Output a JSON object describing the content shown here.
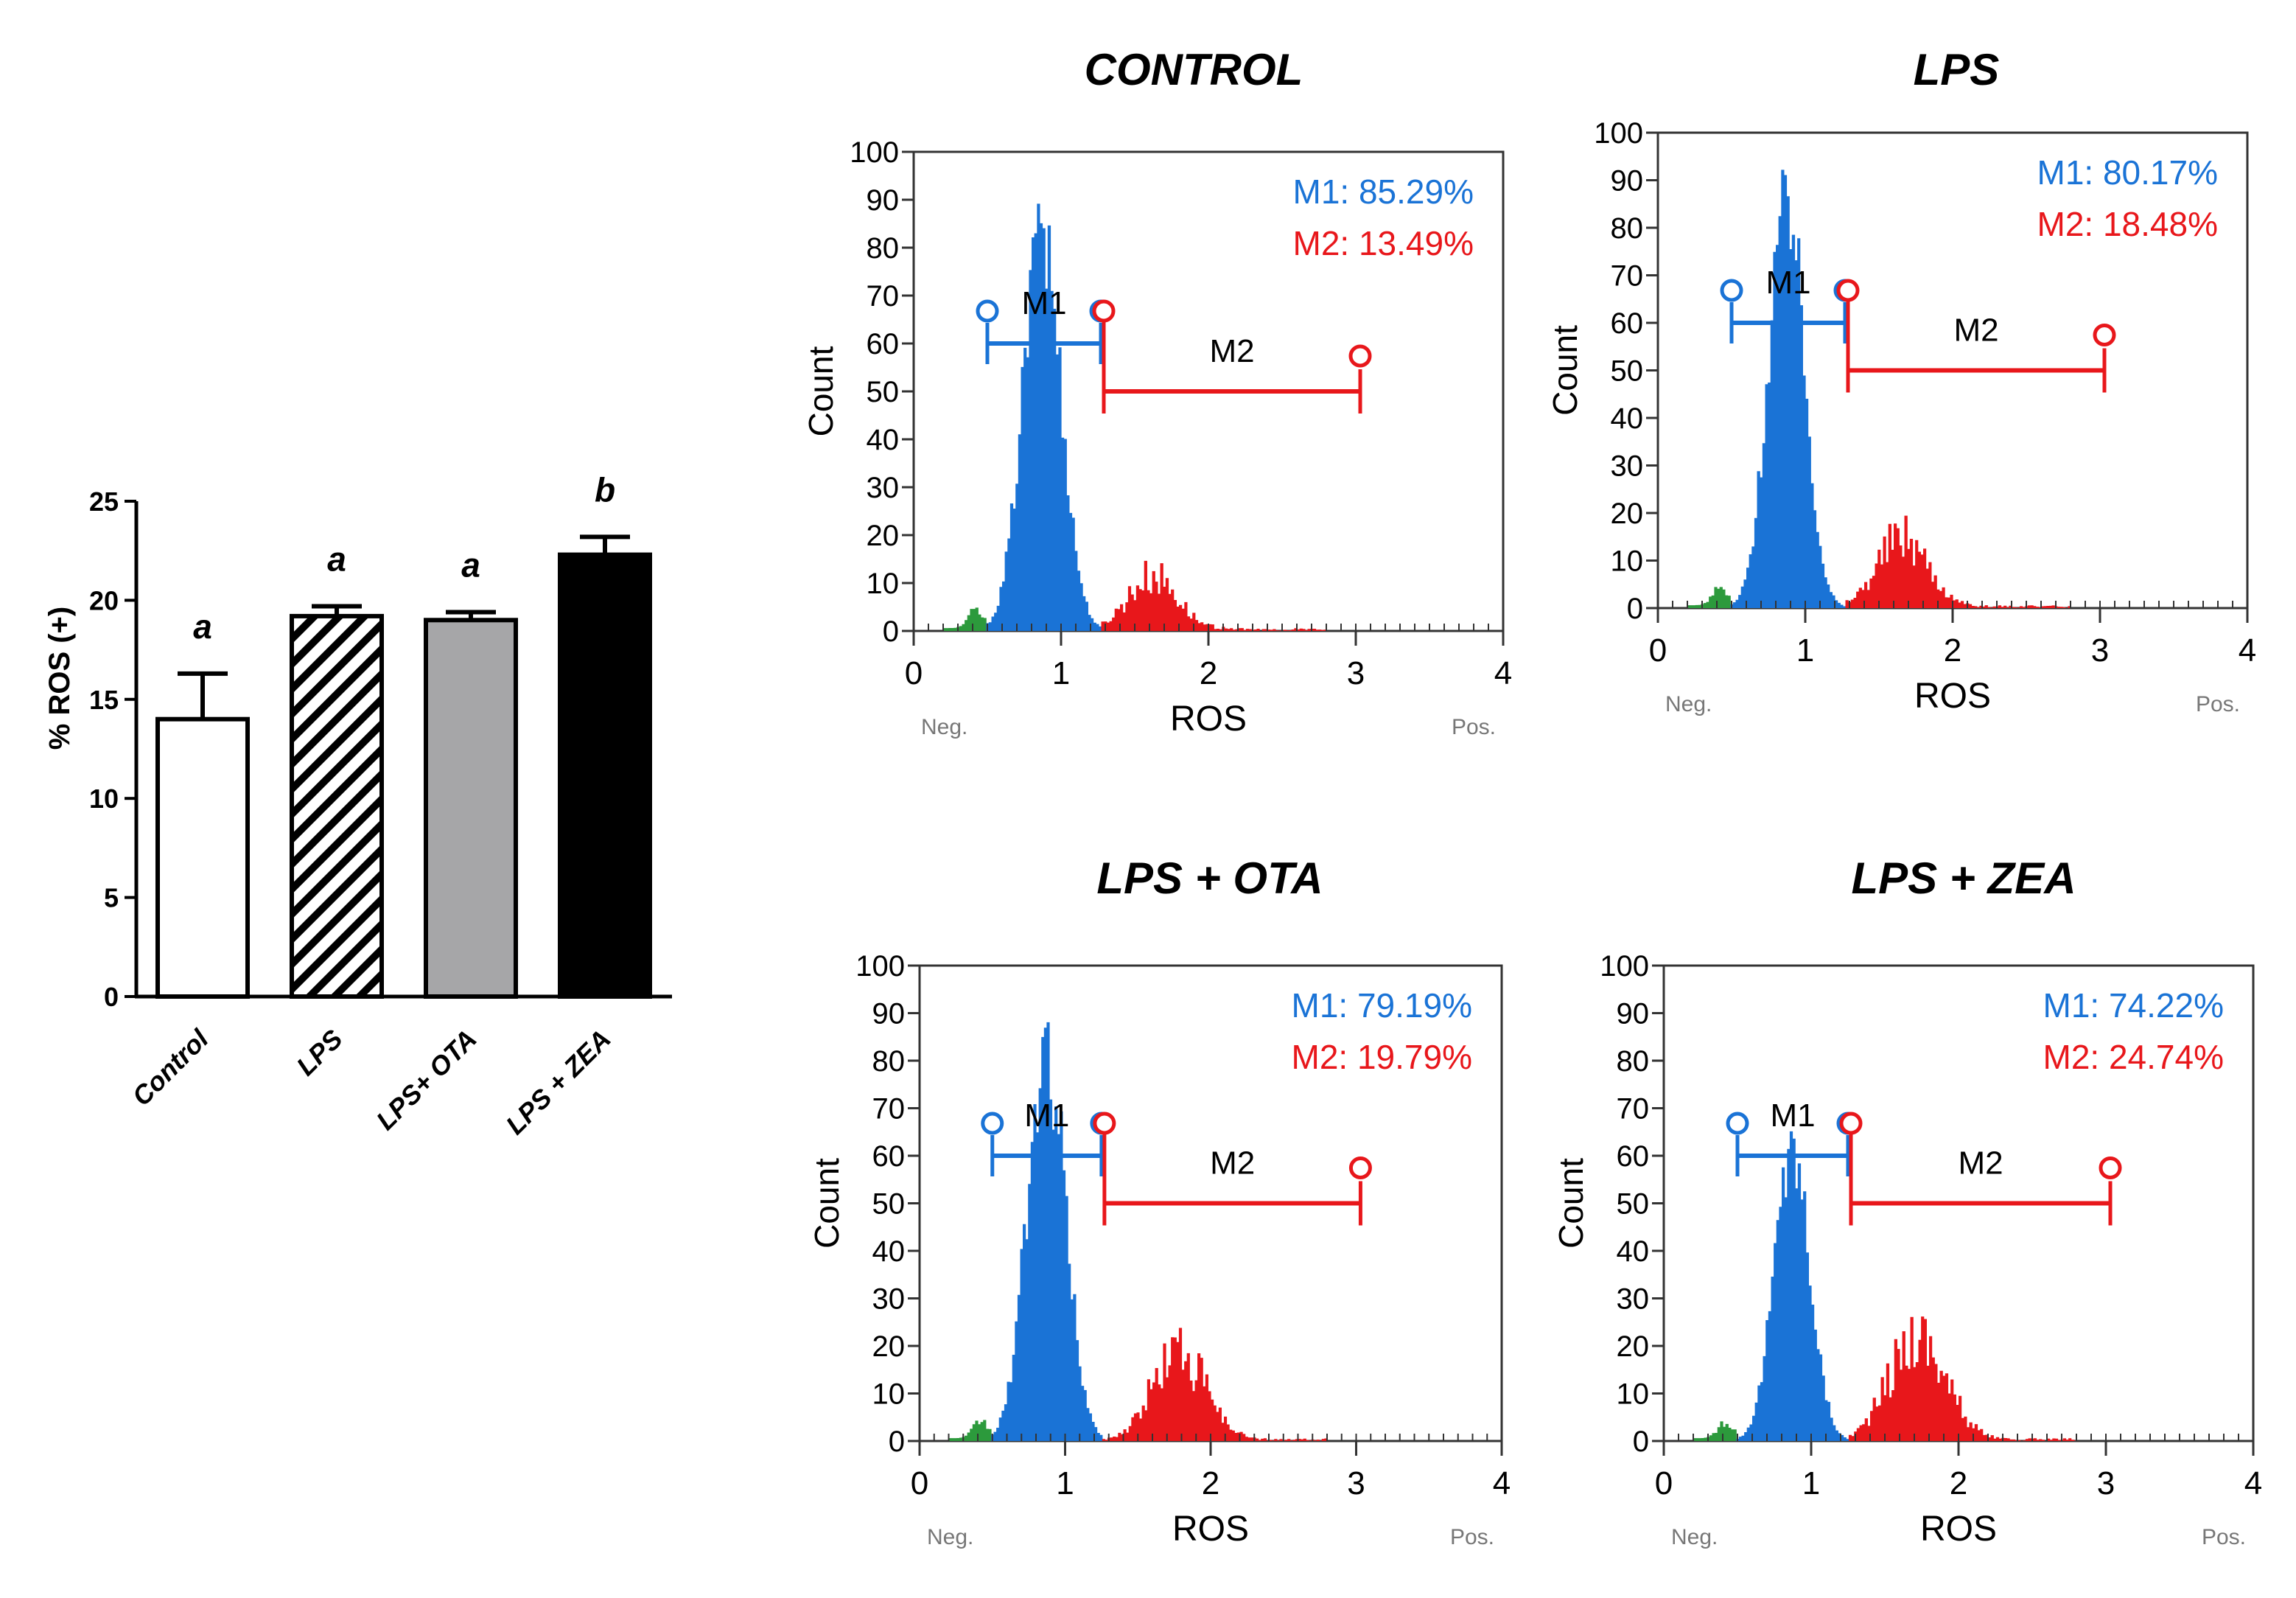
{
  "bar_chart": {
    "ylabel": "% ROS (+)",
    "yticks": [
      "0",
      "5",
      "10",
      "15",
      "20",
      "25"
    ]
  },
  "histograms": {
    "xticks": [
      "0",
      "1",
      "2",
      "3",
      "4"
    ],
    "yticks": [
      "0",
      "10",
      "20",
      "30",
      "40",
      "50",
      "60",
      "70",
      "80",
      "90",
      "100"
    ],
    "ylabel": "Count",
    "xlabel": "ROS",
    "neg_label": "Neg.",
    "pos_label": "Pos.",
    "gate1_label": "M1",
    "gate2_label": "M2"
  },
  "colors": {
    "m1": "#1a73d6",
    "m2": "#e8171b",
    "green": "#2c9a3c",
    "ota_bar": "#a6a6a8",
    "zea_bar": "#000000"
  },
  "chart_data": [
    {
      "type": "bar",
      "title": "",
      "xlabel": "",
      "ylabel": "% ROS (+)",
      "ylim": [
        0,
        25
      ],
      "categories": [
        "Control",
        "LPS",
        "LPS+ OTA",
        "LPS + ZEA"
      ],
      "values": [
        14.0,
        19.2,
        19.0,
        22.3
      ],
      "errors": [
        2.3,
        0.5,
        0.4,
        0.9
      ],
      "significance": [
        "a",
        "a",
        "a",
        "b"
      ],
      "fills": [
        "white",
        "hatched",
        "gray",
        "black"
      ]
    },
    {
      "type": "area",
      "title": "CONTROL",
      "xlabel": "ROS",
      "ylabel": "Count",
      "xlim": [
        0,
        4
      ],
      "ylim": [
        0,
        100
      ],
      "m1": "M1: 85.29%",
      "m2": "M2: 13.49%",
      "m1_range": [
        0.5,
        1.27
      ],
      "m2_range": [
        1.27,
        3.03
      ],
      "m1_bar_y": 60,
      "m2_bar_y": 50,
      "m1_peak": 85,
      "m1_mu": 0.87,
      "m1_sigma": 0.13,
      "m2_peak": 12,
      "m2_mu": 1.62,
      "m2_sigma": 0.17
    },
    {
      "type": "area",
      "title": "LPS",
      "xlabel": "ROS",
      "ylabel": "Count",
      "xlim": [
        0,
        4
      ],
      "ylim": [
        0,
        100
      ],
      "m1": "M1: 80.17%",
      "m2": "M2: 18.48%",
      "m1_range": [
        0.5,
        1.27
      ],
      "m2_range": [
        1.27,
        3.03
      ],
      "m1_bar_y": 60,
      "m2_bar_y": 50,
      "m1_peak": 90,
      "m1_mu": 0.87,
      "m1_sigma": 0.12,
      "m2_peak": 16,
      "m2_mu": 1.66,
      "m2_sigma": 0.17
    },
    {
      "type": "area",
      "title": "LPS + OTA",
      "xlabel": "ROS",
      "ylabel": "Count",
      "xlim": [
        0,
        4
      ],
      "ylim": [
        0,
        100
      ],
      "m1": "M1: 79.19%",
      "m2": "M2: 19.79%",
      "m1_range": [
        0.5,
        1.25
      ],
      "m2_range": [
        1.25,
        3.03
      ],
      "m1_bar_y": 60,
      "m2_bar_y": 50,
      "m1_peak": 85,
      "m1_mu": 0.87,
      "m1_sigma": 0.13,
      "m2_peak": 20,
      "m2_mu": 1.78,
      "m2_sigma": 0.18
    },
    {
      "type": "area",
      "title": "LPS + ZEA",
      "xlabel": "ROS",
      "ylabel": "Count",
      "xlim": [
        0,
        4
      ],
      "ylim": [
        0,
        100
      ],
      "m1": "M1: 74.22%",
      "m2": "M2: 24.74%",
      "m1_range": [
        0.5,
        1.25
      ],
      "m2_range": [
        1.25,
        3.03
      ],
      "m1_bar_y": 60,
      "m2_bar_y": 50,
      "m1_peak": 63,
      "m1_mu": 0.87,
      "m1_sigma": 0.12,
      "m2_peak": 23,
      "m2_mu": 1.72,
      "m2_sigma": 0.19
    }
  ]
}
